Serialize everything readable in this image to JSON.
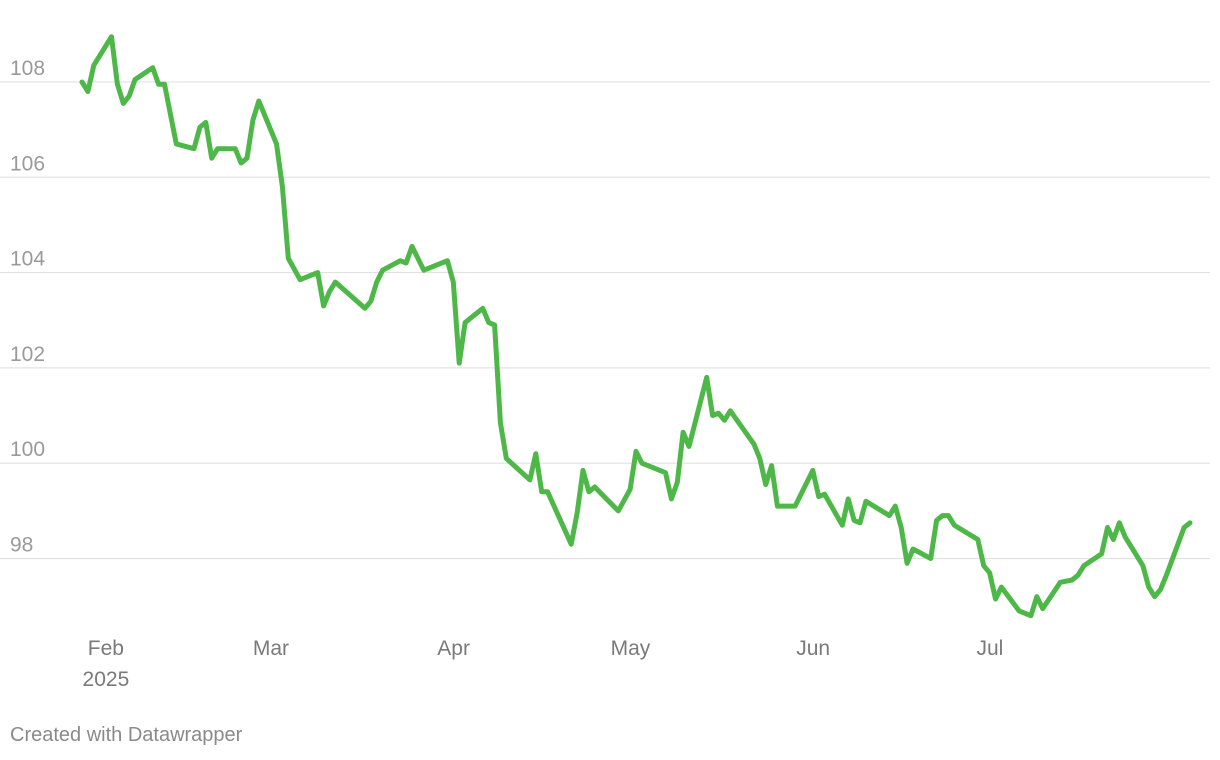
{
  "chart_data": {
    "type": "line",
    "title": "",
    "xlabel": "",
    "ylabel": "",
    "ylim": [
      96.5,
      109.3
    ],
    "xlim": [
      "2025-01-31",
      "2025-07-31"
    ],
    "grid": true,
    "y_ticks": [
      98,
      100,
      102,
      104,
      106,
      108
    ],
    "x_ticks": [
      {
        "date": "2025-02-01",
        "label": "Feb",
        "sublabel": "2025"
      },
      {
        "date": "2025-03-01",
        "label": "Mar"
      },
      {
        "date": "2025-04-01",
        "label": "Apr"
      },
      {
        "date": "2025-05-01",
        "label": "May"
      },
      {
        "date": "2025-06-01",
        "label": "Jun"
      },
      {
        "date": "2025-07-01",
        "label": "Jul"
      }
    ],
    "series": [
      {
        "color": "#4db848",
        "points": [
          [
            "2025-01-31",
            108.0
          ],
          [
            "2025-02-01",
            107.8
          ],
          [
            "2025-02-02",
            108.35
          ],
          [
            "2025-02-05",
            108.95
          ],
          [
            "2025-02-06",
            107.95
          ],
          [
            "2025-02-07",
            107.55
          ],
          [
            "2025-02-08",
            107.7
          ],
          [
            "2025-02-09",
            108.05
          ],
          [
            "2025-02-12",
            108.3
          ],
          [
            "2025-02-13",
            107.95
          ],
          [
            "2025-02-14",
            107.95
          ],
          [
            "2025-02-16",
            106.7
          ],
          [
            "2025-02-19",
            106.6
          ],
          [
            "2025-02-20",
            107.05
          ],
          [
            "2025-02-21",
            107.15
          ],
          [
            "2025-02-22",
            106.4
          ],
          [
            "2025-02-23",
            106.6
          ],
          [
            "2025-02-26",
            106.6
          ],
          [
            "2025-02-27",
            106.3
          ],
          [
            "2025-02-28",
            106.4
          ],
          [
            "2025-03-01",
            107.2
          ],
          [
            "2025-03-02",
            107.6
          ],
          [
            "2025-03-05",
            106.7
          ],
          [
            "2025-03-06",
            105.8
          ],
          [
            "2025-03-07",
            104.3
          ],
          [
            "2025-03-09",
            103.85
          ],
          [
            "2025-03-12",
            104.0
          ],
          [
            "2025-03-13",
            103.3
          ],
          [
            "2025-03-14",
            103.6
          ],
          [
            "2025-03-15",
            103.8
          ],
          [
            "2025-03-20",
            103.25
          ],
          [
            "2025-03-21",
            103.4
          ],
          [
            "2025-03-22",
            103.8
          ],
          [
            "2025-03-23",
            104.05
          ],
          [
            "2025-03-26",
            104.25
          ],
          [
            "2025-03-27",
            104.2
          ],
          [
            "2025-03-28",
            104.55
          ],
          [
            "2025-03-29",
            104.3
          ],
          [
            "2025-03-30",
            104.05
          ],
          [
            "2025-04-03",
            104.25
          ],
          [
            "2025-04-04",
            103.8
          ],
          [
            "2025-04-05",
            102.1
          ],
          [
            "2025-04-06",
            102.95
          ],
          [
            "2025-04-09",
            103.25
          ],
          [
            "2025-04-10",
            102.95
          ],
          [
            "2025-04-11",
            102.9
          ],
          [
            "2025-04-12",
            100.85
          ],
          [
            "2025-04-13",
            100.1
          ],
          [
            "2025-04-17",
            99.65
          ],
          [
            "2025-04-18",
            100.2
          ],
          [
            "2025-04-19",
            99.4
          ],
          [
            "2025-04-20",
            99.4
          ],
          [
            "2025-04-24",
            98.3
          ],
          [
            "2025-04-25",
            98.95
          ],
          [
            "2025-04-26",
            99.85
          ],
          [
            "2025-04-27",
            99.4
          ],
          [
            "2025-04-28",
            99.5
          ],
          [
            "2025-05-02",
            99.0
          ],
          [
            "2025-05-04",
            99.45
          ],
          [
            "2025-05-05",
            100.25
          ],
          [
            "2025-05-06",
            100.0
          ],
          [
            "2025-05-10",
            99.8
          ],
          [
            "2025-05-11",
            99.25
          ],
          [
            "2025-05-12",
            99.6
          ],
          [
            "2025-05-13",
            100.65
          ],
          [
            "2025-05-14",
            100.35
          ],
          [
            "2025-05-17",
            101.8
          ],
          [
            "2025-05-18",
            101.0
          ],
          [
            "2025-05-19",
            101.05
          ],
          [
            "2025-05-20",
            100.9
          ],
          [
            "2025-05-21",
            101.1
          ],
          [
            "2025-05-25",
            100.4
          ],
          [
            "2025-05-26",
            100.1
          ],
          [
            "2025-05-27",
            99.55
          ],
          [
            "2025-05-28",
            99.95
          ],
          [
            "2025-05-29",
            99.1
          ],
          [
            "2025-06-01",
            99.1
          ],
          [
            "2025-06-04",
            99.85
          ],
          [
            "2025-06-05",
            99.3
          ],
          [
            "2025-06-06",
            99.35
          ],
          [
            "2025-06-09",
            98.7
          ],
          [
            "2025-06-10",
            99.25
          ],
          [
            "2025-06-11",
            98.8
          ],
          [
            "2025-06-12",
            98.75
          ],
          [
            "2025-06-13",
            99.2
          ],
          [
            "2025-06-17",
            98.9
          ],
          [
            "2025-06-18",
            99.1
          ],
          [
            "2025-06-19",
            98.65
          ],
          [
            "2025-06-20",
            97.9
          ],
          [
            "2025-06-21",
            98.2
          ],
          [
            "2025-06-24",
            98.0
          ],
          [
            "2025-06-25",
            98.8
          ],
          [
            "2025-06-26",
            98.9
          ],
          [
            "2025-06-27",
            98.9
          ],
          [
            "2025-06-28",
            98.7
          ],
          [
            "2025-07-02",
            98.4
          ],
          [
            "2025-07-03",
            97.85
          ],
          [
            "2025-07-04",
            97.7
          ],
          [
            "2025-07-05",
            97.15
          ],
          [
            "2025-07-06",
            97.4
          ],
          [
            "2025-07-09",
            96.9
          ],
          [
            "2025-07-11",
            96.8
          ],
          [
            "2025-07-12",
            97.2
          ],
          [
            "2025-07-13",
            96.95
          ],
          [
            "2025-07-16",
            97.5
          ],
          [
            "2025-07-18",
            97.55
          ],
          [
            "2025-07-19",
            97.65
          ],
          [
            "2025-07-20",
            97.85
          ],
          [
            "2025-07-23",
            98.1
          ],
          [
            "2025-07-24",
            98.65
          ],
          [
            "2025-07-25",
            98.4
          ],
          [
            "2025-07-26",
            98.75
          ],
          [
            "2025-07-27",
            98.45
          ],
          [
            "2025-07-30",
            97.85
          ],
          [
            "2025-07-31",
            97.4
          ],
          [
            "2025-08-01",
            97.2
          ],
          [
            "2025-08-02",
            97.35
          ],
          [
            "2025-08-03",
            97.65
          ],
          [
            "2025-08-06",
            98.65
          ],
          [
            "2025-08-07",
            98.75
          ]
        ]
      }
    ]
  },
  "footer": {
    "credit": "Created with Datawrapper"
  }
}
